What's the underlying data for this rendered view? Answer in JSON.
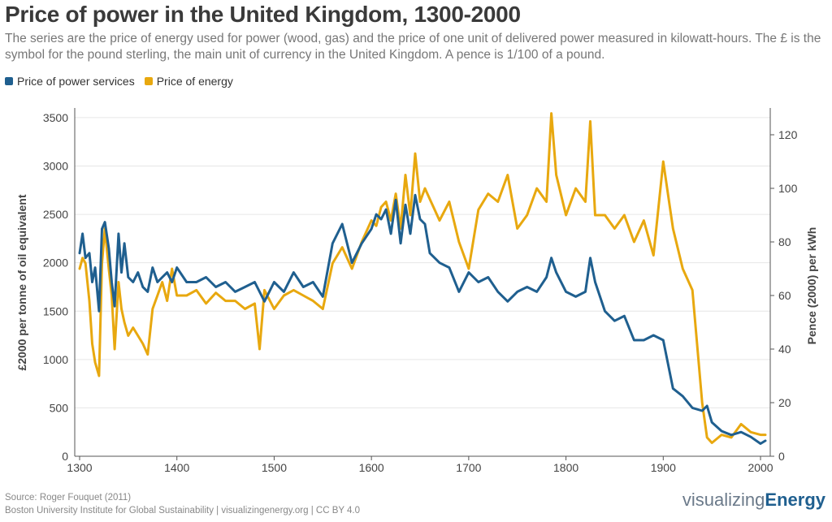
{
  "title": "Price of power in the United Kingdom, 1300-2000",
  "subtitle": "The series are the price of energy used for power (wood, gas) and the price of one unit of delivered power measured in kilowatt-hours. The £ is the symbol for the pound sterling, the main unit of currency in the United Kingdom. A pence is 1/100 of a pound.",
  "source_line1": "Source: Roger Fouquet (2011)",
  "source_line2": "Boston University Institute for Global Sustainability | visualizingenergy.org | CC BY 4.0",
  "brand": {
    "prefix": "visualizing",
    "suffix": "Energy"
  },
  "chart_data": {
    "type": "line",
    "xlabel": "",
    "ylabel_left": "£2000 per tonne of oil equivalent",
    "ylabel_right": "Pence (2000) per kWh",
    "xlim": [
      1295,
      2010
    ],
    "ylim_left": [
      0,
      3600
    ],
    "ylim_right": [
      0,
      130
    ],
    "x_ticks": [
      1300,
      1400,
      1500,
      1600,
      1700,
      1800,
      1900,
      2000
    ],
    "y_ticks_left": [
      0,
      500,
      1000,
      1500,
      2000,
      2500,
      3000,
      3500
    ],
    "y_ticks_right": [
      0,
      20,
      40,
      60,
      80,
      100,
      120
    ],
    "grid": true,
    "legend_position": "top-left",
    "series": [
      {
        "name": "Price of power services",
        "color": "#1f5f8f",
        "axis": "left",
        "x": [
          1300,
          1303,
          1306,
          1310,
          1313,
          1316,
          1320,
          1323,
          1326,
          1330,
          1333,
          1336,
          1340,
          1343,
          1346,
          1350,
          1355,
          1360,
          1365,
          1370,
          1375,
          1380,
          1385,
          1390,
          1395,
          1400,
          1410,
          1420,
          1430,
          1440,
          1450,
          1460,
          1470,
          1480,
          1490,
          1500,
          1510,
          1520,
          1530,
          1540,
          1550,
          1560,
          1570,
          1580,
          1590,
          1600,
          1605,
          1610,
          1615,
          1620,
          1625,
          1630,
          1635,
          1640,
          1645,
          1650,
          1655,
          1660,
          1670,
          1680,
          1690,
          1700,
          1710,
          1720,
          1730,
          1740,
          1750,
          1760,
          1770,
          1780,
          1785,
          1790,
          1800,
          1810,
          1820,
          1825,
          1830,
          1840,
          1850,
          1860,
          1870,
          1880,
          1890,
          1900,
          1910,
          1920,
          1930,
          1940,
          1945,
          1950,
          1960,
          1970,
          1980,
          1990,
          2000,
          2005
        ],
        "y": [
          2100,
          2300,
          2050,
          2100,
          1800,
          1950,
          1500,
          2350,
          2420,
          2150,
          1800,
          1550,
          2300,
          1900,
          2200,
          1850,
          1800,
          1900,
          1750,
          1700,
          1950,
          1800,
          1850,
          1900,
          1800,
          1950,
          1800,
          1800,
          1850,
          1750,
          1800,
          1700,
          1750,
          1800,
          1600,
          1800,
          1700,
          1900,
          1750,
          1800,
          1650,
          2200,
          2400,
          2000,
          2200,
          2350,
          2500,
          2450,
          2550,
          2300,
          2650,
          2200,
          2600,
          2300,
          2700,
          2450,
          2400,
          2100,
          2000,
          1950,
          1700,
          1900,
          1800,
          1850,
          1700,
          1600,
          1700,
          1750,
          1700,
          1850,
          2050,
          1900,
          1700,
          1650,
          1700,
          2050,
          1800,
          1500,
          1400,
          1450,
          1200,
          1200,
          1250,
          1200,
          700,
          620,
          500,
          470,
          520,
          350,
          260,
          220,
          250,
          200,
          130,
          160
        ]
      },
      {
        "name": "Price of energy",
        "color": "#e8a80f",
        "axis": "right",
        "x": [
          1300,
          1303,
          1306,
          1310,
          1313,
          1316,
          1320,
          1323,
          1326,
          1330,
          1333,
          1336,
          1340,
          1343,
          1346,
          1350,
          1355,
          1360,
          1365,
          1370,
          1375,
          1380,
          1385,
          1390,
          1395,
          1400,
          1410,
          1420,
          1430,
          1440,
          1450,
          1460,
          1470,
          1480,
          1485,
          1490,
          1500,
          1510,
          1520,
          1530,
          1540,
          1550,
          1560,
          1570,
          1580,
          1590,
          1600,
          1605,
          1610,
          1615,
          1620,
          1625,
          1630,
          1635,
          1640,
          1645,
          1650,
          1655,
          1660,
          1670,
          1680,
          1690,
          1700,
          1710,
          1720,
          1730,
          1740,
          1750,
          1760,
          1770,
          1780,
          1785,
          1790,
          1800,
          1810,
          1820,
          1825,
          1830,
          1840,
          1850,
          1860,
          1870,
          1880,
          1890,
          1900,
          1910,
          1920,
          1930,
          1940,
          1945,
          1950,
          1960,
          1970,
          1980,
          1990,
          2000,
          2005
        ],
        "y": [
          70,
          74,
          72,
          58,
          42,
          35,
          30,
          72,
          85,
          70,
          60,
          40,
          65,
          55,
          50,
          45,
          48,
          45,
          42,
          38,
          55,
          60,
          65,
          58,
          70,
          60,
          60,
          62,
          57,
          61,
          58,
          58,
          55,
          57,
          40,
          62,
          55,
          60,
          62,
          60,
          58,
          55,
          72,
          78,
          70,
          80,
          88,
          86,
          93,
          95,
          88,
          98,
          85,
          105,
          90,
          113,
          95,
          100,
          96,
          88,
          95,
          80,
          70,
          92,
          98,
          95,
          105,
          85,
          90,
          100,
          95,
          128,
          105,
          90,
          100,
          95,
          125,
          90,
          90,
          85,
          90,
          80,
          88,
          75,
          110,
          85,
          70,
          62,
          20,
          7,
          5,
          8,
          7,
          12,
          9,
          8,
          8
        ]
      }
    ]
  }
}
